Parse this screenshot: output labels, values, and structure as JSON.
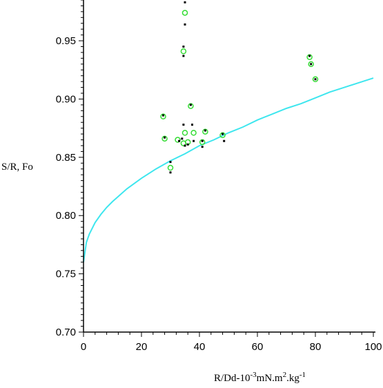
{
  "chart_data": {
    "type": "scatter",
    "title": "",
    "xlabel": "R/Dd-10-3mN.m2.kg-1",
    "xlabel_parts": [
      "R/Dd-10",
      "-3",
      "mN.m",
      "2",
      ".kg",
      "-1"
    ],
    "ylabel": "S/R, Fo",
    "xlim": [
      0,
      100
    ],
    "ylim": [
      0.7,
      0.985
    ],
    "x_ticks": [
      0,
      20,
      40,
      60,
      80,
      100
    ],
    "x_tick_labels": [
      "0",
      "20",
      "40",
      "60",
      "80",
      "100"
    ],
    "y_ticks": [
      0.7,
      0.75,
      0.8,
      0.85,
      0.9,
      0.95
    ],
    "y_tick_labels": [
      "0.70",
      "0.75",
      "0.80",
      "0.85",
      "0.90",
      "0.95"
    ],
    "grid": false,
    "colors": {
      "curve": "#3ee6ee",
      "open_circle": "#33dd33",
      "filled": "#000000",
      "axis": "#000000"
    },
    "series": [
      {
        "marker": "open-circle",
        "color": "#33dd33",
        "points": [
          [
            35.0,
            0.974
          ],
          [
            34.5,
            0.941
          ],
          [
            27.5,
            0.885
          ],
          [
            28.0,
            0.866
          ],
          [
            32.5,
            0.865
          ],
          [
            35.0,
            0.871
          ],
          [
            38.0,
            0.871
          ],
          [
            34.5,
            0.862
          ],
          [
            36.0,
            0.863
          ],
          [
            30.0,
            0.841
          ],
          [
            41.0,
            0.863
          ],
          [
            42.0,
            0.872
          ],
          [
            48.0,
            0.869
          ],
          [
            78.0,
            0.936
          ],
          [
            78.5,
            0.93
          ],
          [
            80.0,
            0.917
          ],
          [
            37.0,
            0.894
          ]
        ]
      },
      {
        "marker": "filled-dot",
        "color": "#000000",
        "points": [
          [
            35.0,
            0.983
          ],
          [
            35.0,
            0.964
          ],
          [
            34.5,
            0.945
          ],
          [
            34.5,
            0.937
          ],
          [
            34.5,
            0.878
          ],
          [
            37.5,
            0.878
          ],
          [
            27.5,
            0.886
          ],
          [
            28.0,
            0.867
          ],
          [
            33.0,
            0.864
          ],
          [
            35.0,
            0.86
          ],
          [
            36.0,
            0.861
          ],
          [
            34.0,
            0.866
          ],
          [
            38.0,
            0.864
          ],
          [
            30.0,
            0.846
          ],
          [
            30.0,
            0.837
          ],
          [
            37.0,
            0.895
          ],
          [
            41.0,
            0.864
          ],
          [
            41.0,
            0.859
          ],
          [
            42.0,
            0.873
          ],
          [
            48.0,
            0.87
          ],
          [
            48.5,
            0.864
          ],
          [
            78.0,
            0.937
          ],
          [
            78.5,
            0.93
          ],
          [
            80.0,
            0.917
          ]
        ]
      }
    ],
    "curve": {
      "color": "#3ee6ee",
      "x": [
        0,
        1,
        2,
        4,
        6,
        8,
        10,
        15,
        20,
        25,
        30,
        35,
        40,
        45,
        50,
        55,
        60,
        65,
        70,
        75,
        80,
        85,
        90,
        95,
        100
      ],
      "y": [
        0.76,
        0.777,
        0.784,
        0.794,
        0.801,
        0.807,
        0.812,
        0.823,
        0.832,
        0.84,
        0.847,
        0.853,
        0.86,
        0.865,
        0.871,
        0.876,
        0.882,
        0.887,
        0.892,
        0.896,
        0.901,
        0.906,
        0.91,
        0.914,
        0.918
      ]
    }
  }
}
